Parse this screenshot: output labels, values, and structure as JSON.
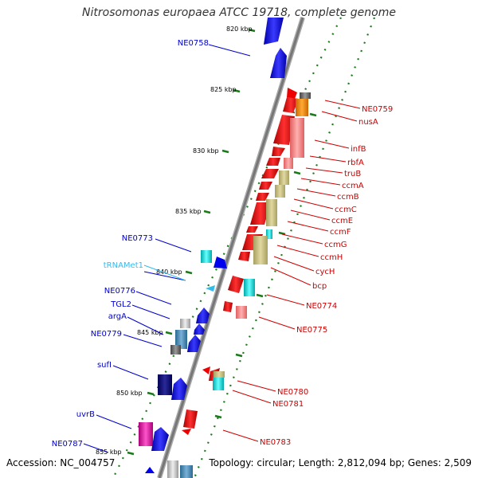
{
  "title": "Nitrosomonas europaea ATCC 19718, complete genome",
  "footer": {
    "accession": "Accession: NC_004757",
    "summary": "Topology: circular; Length: 2,812,094 bp; Genes: 2,509"
  },
  "kbp_labels": [
    "820 kbp",
    "825 kbp",
    "830 kbp",
    "835 kbp",
    "840 kbp",
    "845 kbp",
    "850 kbp",
    "855 kbp"
  ],
  "colors": {
    "backbone": "#808080",
    "forward": "#0000ee",
    "reverse": "#ee0000",
    "trna": "#33bbee",
    "tick": "#1a7a1a"
  },
  "left_genes": [
    "NE0758",
    "NE0773",
    "tRNAMet1",
    "NE0776",
    "TGL2",
    "argA",
    "NE0779",
    "sufI",
    "uvrB",
    "NE0787"
  ],
  "right_genes": [
    "NE0759",
    "nusA",
    "infB",
    "rbfA",
    "truB",
    "ccmA",
    "ccmB",
    "ccmC",
    "ccmE",
    "ccmF",
    "ccmG",
    "ccmH",
    "cycH",
    "bcp",
    "NE0774",
    "NE0775",
    "NE0780",
    "NE0781",
    "NE0783"
  ]
}
